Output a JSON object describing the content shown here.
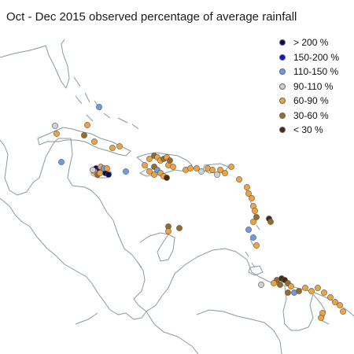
{
  "title": "Oct - Dec 2015 observed percentage of average rainfall",
  "legend": {
    "items": [
      {
        "label": "> 200 %",
        "color": "#0b0b55"
      },
      {
        "label": "150-200 %",
        "color": "#1212cc"
      },
      {
        "label": "110-150 %",
        "color": "#6a9be6"
      },
      {
        "label": "90-110 %",
        "color": "#d0d0d0"
      },
      {
        "label": "60-90 %",
        "color": "#f2a23c"
      },
      {
        "label": "30-60 %",
        "color": "#9b6a25"
      },
      {
        "label": "< 30  %",
        "color": "#4a2a10"
      }
    ]
  },
  "map": {
    "region": "Caribbean basin",
    "coastline_color": "#8a9a9a",
    "station_categories": [
      "> 200 %",
      "150-200 %",
      "110-150 %",
      "90-110 %",
      "60-90 %",
      "30-60 %",
      "< 30  %"
    ]
  }
}
